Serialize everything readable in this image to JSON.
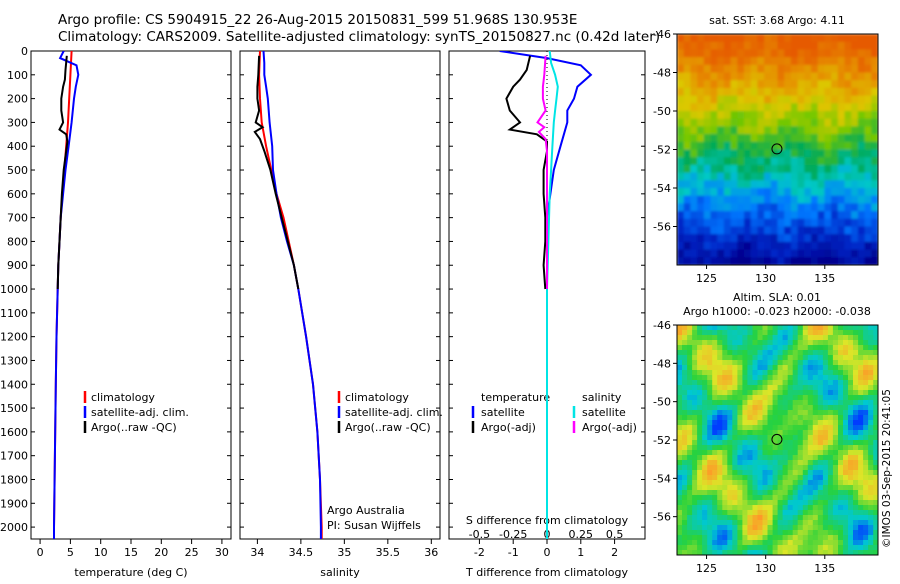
{
  "header": {
    "line1": "Argo profile: CS 5904915_22 26-Aug-2015 20150831_599 51.968S 130.953E",
    "line2": "Climatology: CARS2009. Satellite-adjusted climatology: synTS_20150827.nc (0.42d later)"
  },
  "colors": {
    "climatology": "#ff0000",
    "satellite": "#0000ff",
    "argo": "#000000",
    "satellite_s": "#00e5e5",
    "argo_s": "#ff00ff"
  },
  "chart_data": [
    {
      "type": "line",
      "panel": "temperature",
      "xlabel": "temperature (deg C)",
      "ylabel": "",
      "xlim": [
        -1.5,
        31.5
      ],
      "ylim": [
        2050,
        0
      ],
      "xticks": [
        "0",
        "5",
        "10",
        "15",
        "20",
        "25",
        "30"
      ],
      "yticks": [
        "0",
        "100",
        "200",
        "300",
        "400",
        "500",
        "600",
        "700",
        "800",
        "900",
        "1000",
        "1100",
        "1200",
        "1300",
        "1400",
        "1500",
        "1600",
        "1700",
        "1800",
        "1900",
        "2000"
      ],
      "legend": [
        "climatology",
        "satellite-adj. clim.",
        "Argo(..raw -QC)"
      ],
      "series": [
        {
          "name": "climatology",
          "depth": [
            0,
            100,
            200,
            300,
            400,
            500,
            600,
            700,
            800,
            900,
            1000,
            1100,
            1200,
            1400,
            1600,
            1800,
            2000,
            2050
          ],
          "values": [
            5.2,
            5.0,
            4.8,
            4.6,
            4.3,
            4.0,
            3.7,
            3.4,
            3.2,
            3.0,
            2.9,
            2.8,
            2.7,
            2.6,
            2.5,
            2.4,
            2.3,
            2.3
          ]
        },
        {
          "name": "satellite-adj. clim.",
          "depth": [
            0,
            30,
            60,
            100,
            150,
            200,
            300,
            400,
            500,
            600,
            700,
            800,
            900,
            1000,
            1200,
            1400,
            1600,
            1800,
            2000,
            2050
          ],
          "values": [
            3.9,
            3.3,
            6.0,
            6.3,
            5.9,
            5.6,
            5.2,
            4.7,
            4.2,
            3.8,
            3.4,
            3.2,
            3.0,
            2.9,
            2.7,
            2.6,
            2.5,
            2.4,
            2.3,
            2.3
          ]
        },
        {
          "name": "Argo(..raw -QC)",
          "depth": [
            20,
            80,
            120,
            150,
            200,
            250,
            300,
            330,
            350,
            380,
            420,
            500,
            600,
            700,
            800,
            900,
            1000
          ],
          "values": [
            4.4,
            4.2,
            4.1,
            3.8,
            3.5,
            3.5,
            3.8,
            3.2,
            4.3,
            4.5,
            4.3,
            3.9,
            3.6,
            3.4,
            3.2,
            3.0,
            2.9
          ]
        }
      ]
    },
    {
      "type": "line",
      "panel": "salinity",
      "xlabel": "salinity",
      "ylabel": "",
      "xlim": [
        33.8,
        36.1
      ],
      "ylim": [
        2050,
        0
      ],
      "xticks": [
        "34",
        "34.5",
        "35",
        "35.5",
        "36"
      ],
      "legend": [
        "climatology",
        "satellite-adj. clim.",
        "Argo(..raw -QC)"
      ],
      "annotation": [
        "Argo Australia",
        "PI: Susan Wijffels"
      ],
      "series": [
        {
          "name": "climatology",
          "depth": [
            0,
            100,
            200,
            300,
            400,
            500,
            600,
            700,
            800,
            900,
            1000,
            1200,
            1400,
            1600,
            1800,
            2000,
            2050
          ],
          "values": [
            34.03,
            34.02,
            34.03,
            34.05,
            34.1,
            34.16,
            34.22,
            34.3,
            34.36,
            34.42,
            34.47,
            34.56,
            34.64,
            34.69,
            34.72,
            34.74,
            34.74
          ]
        },
        {
          "name": "satellite-adj. clim.",
          "depth": [
            0,
            50,
            100,
            150,
            200,
            300,
            400,
            500,
            600,
            700,
            800,
            900,
            1000,
            1200,
            1400,
            1600,
            1800,
            2000,
            2050
          ],
          "values": [
            34.07,
            34.08,
            34.08,
            34.1,
            34.12,
            34.14,
            34.17,
            34.18,
            34.22,
            34.27,
            34.34,
            34.42,
            34.47,
            34.56,
            34.64,
            34.69,
            34.72,
            34.73,
            34.73
          ]
        },
        {
          "name": "Argo(..raw -QC)",
          "depth": [
            20,
            100,
            150,
            200,
            250,
            300,
            320,
            340,
            370,
            420,
            500,
            600,
            700,
            800,
            900,
            1000
          ],
          "values": [
            34.02,
            34.01,
            34.0,
            34.0,
            34.02,
            33.98,
            34.06,
            33.97,
            34.03,
            34.08,
            34.15,
            34.21,
            34.28,
            34.35,
            34.42,
            34.47
          ]
        }
      ]
    },
    {
      "type": "line",
      "panel": "difference",
      "xlabel": "T difference from climatology",
      "xlabel_top": "S difference from climatology",
      "xlim": [
        -2.9,
        2.9
      ],
      "ylim": [
        2050,
        0
      ],
      "xticks": [
        "-2",
        "-1",
        "0",
        "1",
        "2"
      ],
      "xticks_top": [
        "-0.5",
        "-0.25",
        "0",
        "0.25",
        "0.5"
      ],
      "legend_temperature": [
        "temperature",
        "satellite",
        "Argo(-adj)"
      ],
      "legend_salinity": [
        "salinity",
        "satellite",
        "Argo(-adj)"
      ],
      "series": [
        {
          "name": "satellite",
          "variable": "T",
          "depth": [
            0,
            30,
            60,
            100,
            150,
            200,
            250,
            300,
            350,
            400,
            500,
            600,
            700,
            800,
            900,
            1000,
            1200,
            1400,
            1600,
            1800,
            2000,
            2050
          ],
          "values": [
            -1.4,
            0,
            1.0,
            1.3,
            0.9,
            0.8,
            0.6,
            0.6,
            0.5,
            0.4,
            0.2,
            0.1,
            0.0,
            0.0,
            0.0,
            0.0,
            0.0,
            0.0,
            0.0,
            0.0,
            0.0,
            0.0
          ]
        },
        {
          "name": "Argo(-adj)",
          "variable": "T",
          "depth": [
            20,
            80,
            120,
            150,
            200,
            250,
            300,
            330,
            350,
            380,
            420,
            500,
            600,
            700,
            800,
            900,
            1000
          ],
          "values": [
            -0.5,
            -0.6,
            -0.8,
            -1.0,
            -1.2,
            -1.1,
            -0.8,
            -1.1,
            -0.3,
            0.0,
            0.0,
            -0.1,
            -0.1,
            -0.05,
            -0.05,
            -0.1,
            -0.05
          ]
        },
        {
          "name": "satellite",
          "variable": "S",
          "depth": [
            0,
            50,
            100,
            150,
            200,
            250,
            300,
            400,
            500,
            600,
            800,
            1000,
            1200,
            1400,
            1600,
            1800,
            2000,
            2050
          ],
          "values": [
            0.02,
            0.03,
            0.06,
            0.08,
            0.07,
            0.06,
            0.05,
            0.04,
            0.03,
            0.02,
            0.01,
            0.0,
            0.0,
            0.0,
            0.0,
            0.0,
            0.0,
            0.0
          ]
        },
        {
          "name": "Argo(-adj)",
          "variable": "S",
          "depth": [
            20,
            100,
            150,
            200,
            250,
            300,
            320,
            340,
            370,
            420,
            500,
            600,
            800,
            1000
          ],
          "values": [
            -0.01,
            -0.02,
            -0.03,
            -0.03,
            -0.01,
            -0.07,
            -0.02,
            -0.06,
            -0.01,
            0.0,
            0.0,
            0.0,
            0.0,
            0.0
          ]
        }
      ]
    },
    {
      "type": "heatmap",
      "panel": "sst-map",
      "title": "sat. SST: 3.68 Argo: 4.11",
      "xlim": [
        122.5,
        139.5
      ],
      "ylim": [
        -58,
        -46
      ],
      "xticks": [
        "125",
        "130",
        "135"
      ],
      "yticks": [
        "-46",
        "-48",
        "-50",
        "-52",
        "-54",
        "-56"
      ],
      "marker": {
        "lon": 130.953,
        "lat": -51.968
      }
    },
    {
      "type": "heatmap",
      "panel": "sla-map",
      "title": "Altim. SLA: 0.01",
      "subtitle": "Argo h1000: -0.023 h2000: -0.038",
      "xlim": [
        122.5,
        139.5
      ],
      "ylim": [
        -58,
        -46
      ],
      "xticks": [
        "125",
        "130",
        "135"
      ],
      "yticks": [
        "-46",
        "-48",
        "-50",
        "-52",
        "-54",
        "-56"
      ],
      "marker": {
        "lon": 130.953,
        "lat": -51.968
      }
    }
  ],
  "credit": "©IMOS 03-Sep-2015 20:41:05"
}
